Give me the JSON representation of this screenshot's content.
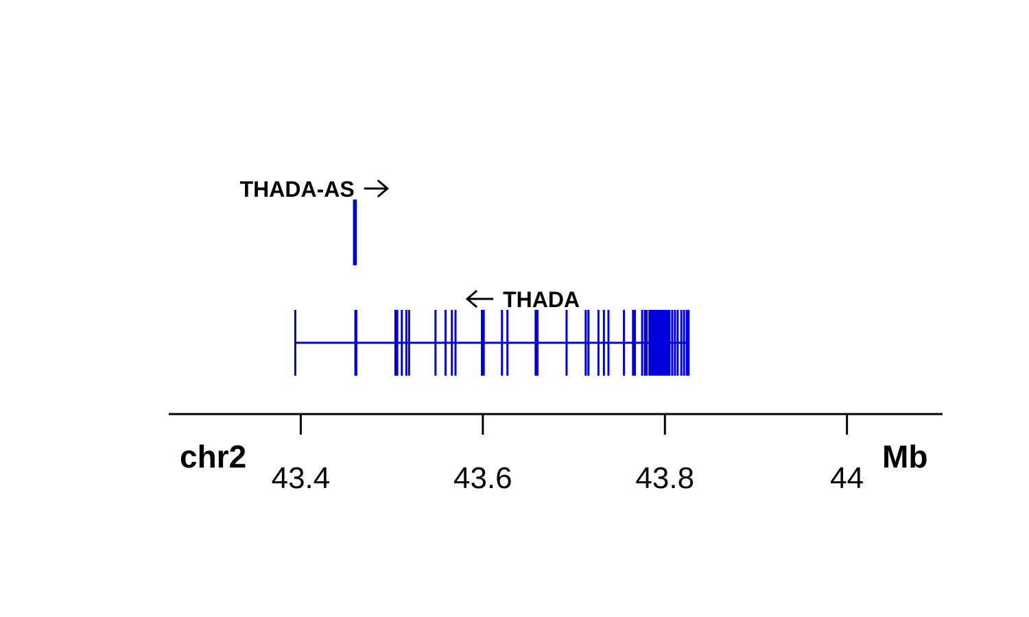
{
  "chart_data": {
    "type": "gene-track",
    "chromosome_label": "chr2",
    "unit_label": "Mb",
    "xlim": [
      43.255,
      44.105
    ],
    "ticks": [
      43.4,
      43.6,
      43.8,
      44.0
    ],
    "tick_labels": [
      "43.4",
      "43.6",
      "43.8",
      "44"
    ],
    "colors": {
      "exon": "#0000dd",
      "axis": "#000000",
      "text": "#000000"
    },
    "genes": [
      {
        "name": "THADA-AS",
        "strand": "+",
        "row": 1,
        "start": 43.4585,
        "end": 43.4605,
        "exons": [
          43.4585,
          43.4605
        ]
      },
      {
        "name": "THADA",
        "strand": "-",
        "row": 0,
        "start": 43.394,
        "end": 43.826,
        "exons": [
          43.394,
          43.46,
          43.461,
          43.504,
          43.506,
          43.511,
          43.516,
          43.519,
          43.548,
          43.559,
          43.566,
          43.57,
          43.599,
          43.601,
          43.621,
          43.627,
          43.658,
          43.66,
          43.692,
          43.713,
          43.716,
          43.727,
          43.733,
          43.738,
          43.755,
          43.765,
          43.767,
          43.775,
          43.778,
          43.78,
          43.783,
          43.785,
          43.787,
          43.789,
          43.791,
          43.793,
          43.795,
          43.797,
          43.799,
          43.801,
          43.803,
          43.805,
          43.808,
          43.811,
          43.814,
          43.818,
          43.821,
          43.824,
          43.826
        ]
      }
    ]
  }
}
